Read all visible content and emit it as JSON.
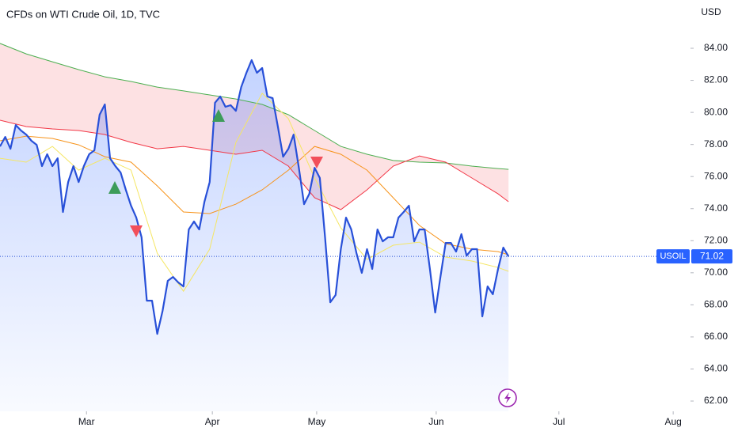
{
  "chart_data": {
    "type": "line",
    "title": "CFDs on WTI Crude Oil, 1D, TVC",
    "currency": "USD",
    "xlim": [
      0,
      131.7
    ],
    "ylim": [
      61.36,
      87.01
    ],
    "xticks": [
      {
        "value": 16.5,
        "label": "Mar"
      },
      {
        "value": 40.5,
        "label": "Apr"
      },
      {
        "value": 60.4,
        "label": "May"
      },
      {
        "value": 83.2,
        "label": "Jun"
      },
      {
        "value": 106.6,
        "label": "Jul"
      },
      {
        "value": 128.4,
        "label": "Aug"
      }
    ],
    "yticks": [
      {
        "value": 62,
        "label": "62.00"
      },
      {
        "value": 64,
        "label": "64.00"
      },
      {
        "value": 66,
        "label": "66.00"
      },
      {
        "value": 68,
        "label": "68.00"
      },
      {
        "value": 70,
        "label": "70.00"
      },
      {
        "value": 72,
        "label": "72.00"
      },
      {
        "value": 74,
        "label": "74.00"
      },
      {
        "value": 76,
        "label": "76.00"
      },
      {
        "value": 78,
        "label": "78.00"
      },
      {
        "value": 80,
        "label": "80.00"
      },
      {
        "value": 82,
        "label": "82.00"
      },
      {
        "value": 84,
        "label": "84.00"
      }
    ],
    "series": [
      {
        "name": "USOIL",
        "color": "#2850d8",
        "x": [
          0,
          1,
          2,
          3,
          4,
          5,
          6,
          7,
          8,
          9,
          10,
          11,
          12,
          13,
          14,
          15,
          16,
          17,
          18,
          19,
          20,
          21,
          22,
          23,
          24,
          25,
          26,
          27,
          28,
          29,
          30,
          31,
          32,
          33,
          34,
          35,
          36,
          37,
          38,
          39,
          40,
          41,
          42,
          43,
          44,
          45,
          46,
          47,
          48,
          49,
          50,
          51,
          52,
          53,
          54,
          55,
          56,
          57,
          58,
          59,
          60,
          61,
          62,
          63,
          64,
          65,
          66,
          67,
          68,
          69,
          70,
          71,
          72,
          73,
          74,
          75,
          76,
          77,
          78,
          79,
          80,
          81,
          82,
          83,
          84,
          85,
          86,
          87,
          88,
          89,
          90,
          91,
          92,
          93,
          94,
          95,
          96,
          97
        ],
        "values": [
          77.88,
          78.47,
          77.73,
          79.21,
          78.87,
          78.62,
          78.23,
          77.98,
          76.65,
          77.39,
          76.65,
          77.14,
          73.79,
          75.66,
          76.65,
          75.66,
          76.65,
          77.39,
          77.64,
          79.86,
          80.5,
          77.14,
          76.65,
          76.25,
          75.17,
          74.18,
          73.44,
          72.21,
          68.26,
          68.26,
          66.19,
          67.62,
          69.5,
          69.74,
          69.4,
          69.15,
          72.7,
          73.2,
          72.7,
          74.43,
          75.66,
          80.6,
          80.99,
          80.35,
          80.45,
          80.1,
          81.58,
          82.47,
          83.26,
          82.47,
          82.77,
          80.99,
          80.89,
          79.12,
          77.24,
          77.73,
          78.62,
          76.55,
          74.28,
          74.92,
          76.55,
          75.91,
          72.21,
          68.16,
          68.61,
          71.47,
          73.44,
          72.7,
          71.22,
          69.99,
          71.47,
          70.24,
          72.7,
          71.96,
          72.21,
          72.21,
          73.44,
          73.79,
          74.18,
          71.96,
          72.7,
          72.7,
          70.24,
          67.52,
          69.74,
          71.86,
          71.86,
          71.32,
          72.41,
          71.07,
          71.47,
          71.47,
          67.28,
          69.15,
          68.66,
          70.24,
          71.57,
          71.02
        ]
      },
      {
        "color": "#4caf50",
        "x": [
          0,
          5,
          10,
          15,
          20,
          25,
          30,
          35,
          40,
          45,
          50,
          55,
          60,
          65,
          70,
          75,
          80,
          85,
          90,
          95,
          97
        ],
        "values": [
          84.3,
          83.65,
          83.16,
          82.67,
          82.22,
          81.93,
          81.58,
          81.34,
          81.09,
          80.84,
          80.5,
          79.86,
          78.87,
          77.88,
          77.39,
          77.0,
          76.9,
          76.85,
          76.65,
          76.5,
          76.45
        ]
      },
      {
        "color": "#f23645",
        "x": [
          0,
          5,
          10,
          15,
          20,
          25,
          30,
          35,
          40,
          45,
          50,
          55,
          60,
          65,
          70,
          75,
          80,
          85,
          90,
          95,
          97
        ],
        "values": [
          79.51,
          79.12,
          78.97,
          78.87,
          78.62,
          78.13,
          77.73,
          77.88,
          77.64,
          77.39,
          77.64,
          76.65,
          74.68,
          73.94,
          75.17,
          76.65,
          77.29,
          76.9,
          75.91,
          74.92,
          74.43
        ]
      },
      {
        "color": "#f7931a",
        "x": [
          0,
          5,
          10,
          15,
          20,
          25,
          30,
          35,
          40,
          45,
          50,
          55,
          60,
          65,
          70,
          75,
          80,
          85,
          90,
          95,
          97
        ],
        "values": [
          78.23,
          78.52,
          78.38,
          77.98,
          77.24,
          76.9,
          75.42,
          73.79,
          73.69,
          74.28,
          75.17,
          76.4,
          77.88,
          77.39,
          76.4,
          74.68,
          72.95,
          71.81,
          71.47,
          71.32,
          71.12
        ]
      },
      {
        "color": "#f5e663",
        "x": [
          0,
          5,
          10,
          15,
          20,
          25,
          30,
          35,
          40,
          45,
          50,
          55,
          60,
          65,
          70,
          75,
          80,
          85,
          90,
          95,
          97
        ],
        "values": [
          77.14,
          76.9,
          77.88,
          76.4,
          77.14,
          76.4,
          71.22,
          68.85,
          71.47,
          78.13,
          81.19,
          79.61,
          75.91,
          72.8,
          70.83,
          71.72,
          71.91,
          70.98,
          70.73,
          70.33,
          70.09
        ]
      }
    ]
  }
}
